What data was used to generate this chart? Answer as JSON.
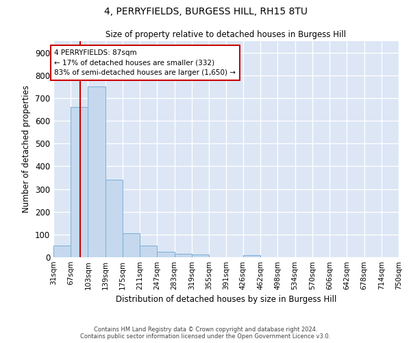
{
  "title": "4, PERRYFIELDS, BURGESS HILL, RH15 8TU",
  "subtitle": "Size of property relative to detached houses in Burgess Hill",
  "xlabel": "Distribution of detached houses by size in Burgess Hill",
  "ylabel": "Number of detached properties",
  "bin_edges": [
    31,
    67,
    103,
    139,
    175,
    211,
    247,
    283,
    319,
    355,
    391,
    426,
    462,
    498,
    534,
    570,
    606,
    642,
    678,
    714,
    750
  ],
  "bar_heights": [
    50,
    660,
    750,
    340,
    105,
    52,
    25,
    15,
    12,
    0,
    0,
    8,
    0,
    0,
    0,
    0,
    0,
    0,
    0,
    0
  ],
  "bar_color": "#c5d8ee",
  "bar_edge_color": "#7aafd4",
  "property_size": 87,
  "vline_color": "#cc0000",
  "annotation_text": "4 PERRYFIELDS: 87sqm\n← 17% of detached houses are smaller (332)\n83% of semi-detached houses are larger (1,650) →",
  "annotation_box_color": "#ffffff",
  "annotation_box_edge": "#cc0000",
  "ylim": [
    0,
    950
  ],
  "yticks": [
    0,
    100,
    200,
    300,
    400,
    500,
    600,
    700,
    800,
    900
  ],
  "background_color": "#dce6f5",
  "grid_color": "#ffffff",
  "footer_line1": "Contains HM Land Registry data © Crown copyright and database right 2024.",
  "footer_line2": "Contains public sector information licensed under the Open Government Licence v3.0."
}
